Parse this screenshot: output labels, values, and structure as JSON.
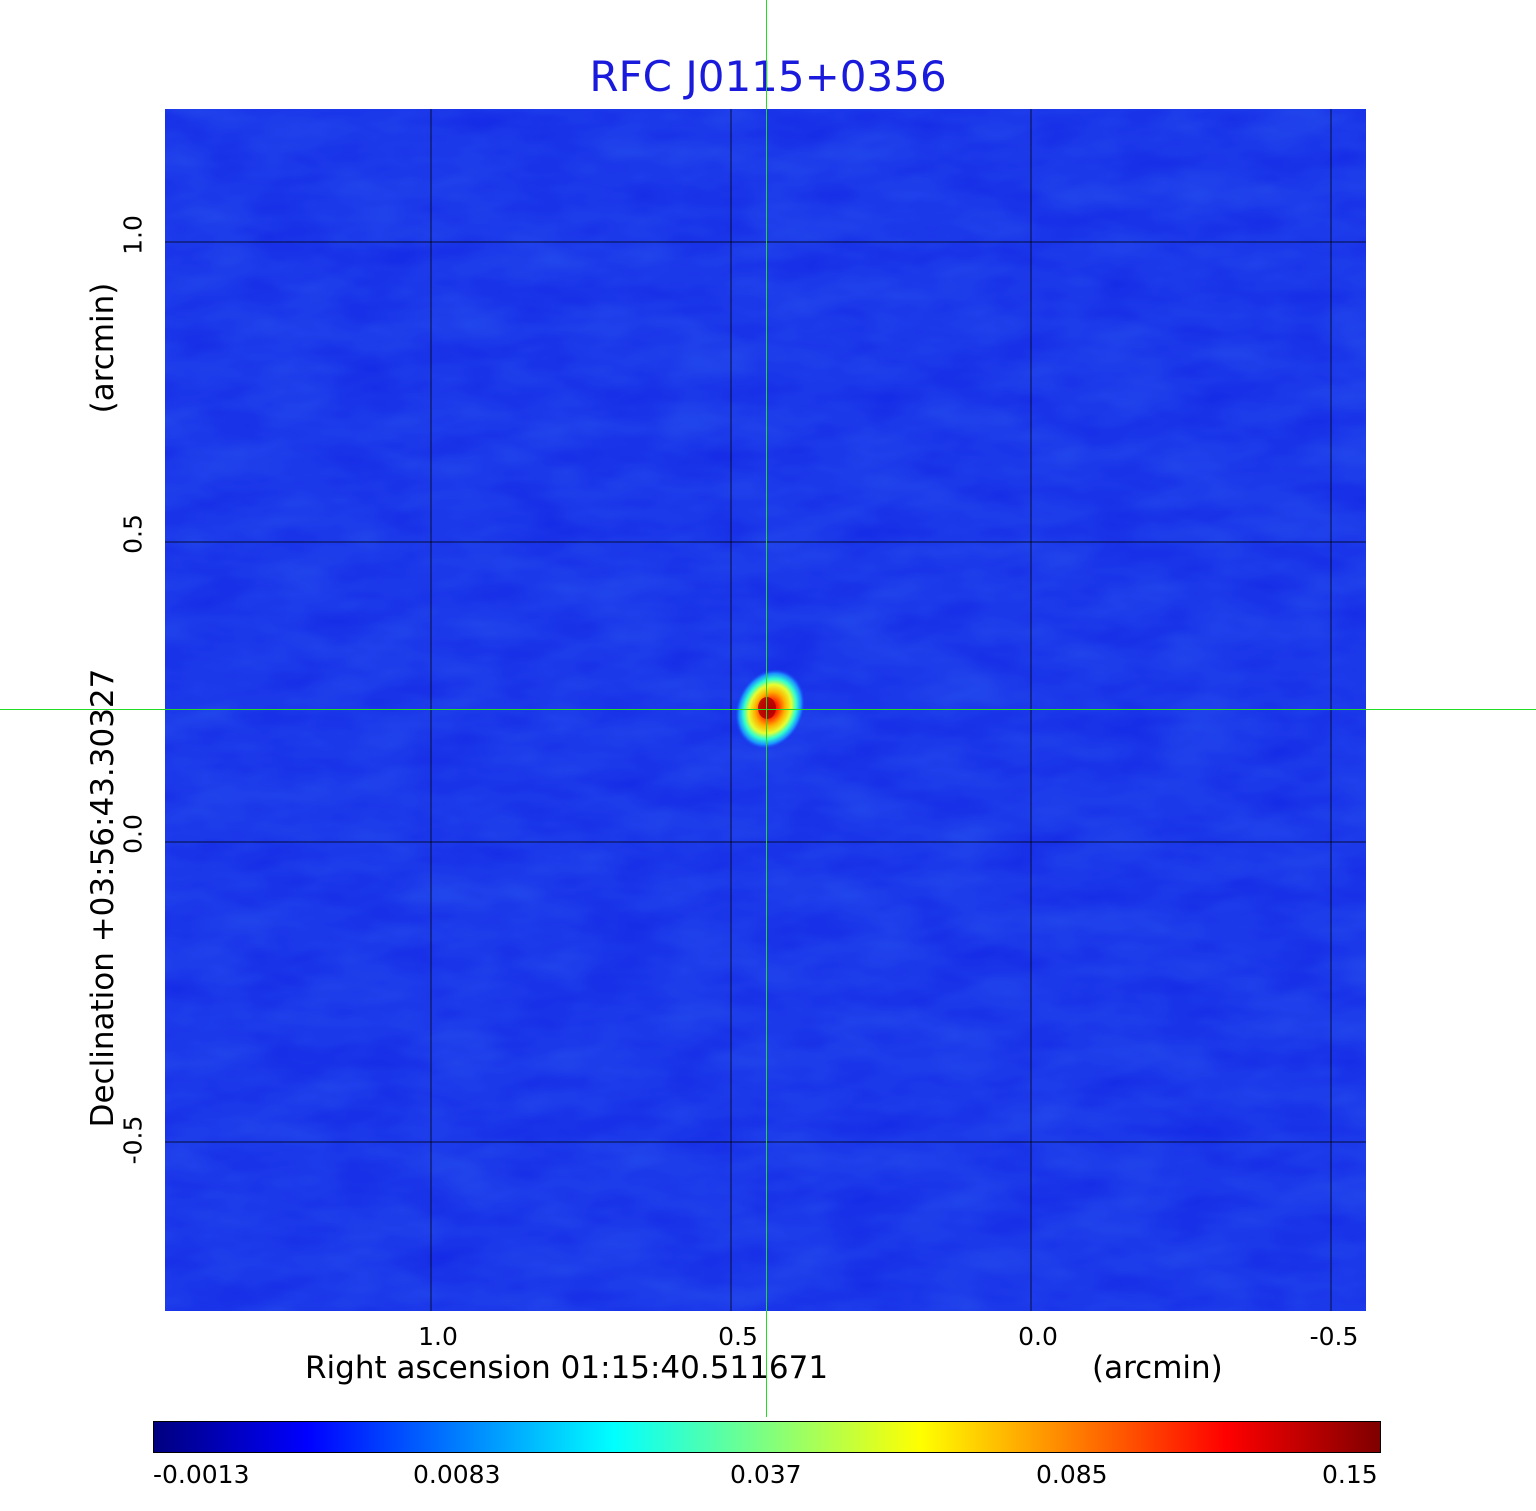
{
  "title": "RFC J0115+0356",
  "x_axis": {
    "label": "Right ascension  01:15:40.511671",
    "unit": "(arcmin)",
    "ticks": [
      "1.0",
      "0.5",
      "0.0",
      "-0.5"
    ]
  },
  "y_axis": {
    "label": "Declination  +03:56:43.30327",
    "unit": "(arcmin)",
    "ticks": [
      "1.0",
      "0.5",
      "0.0",
      "-0.5"
    ]
  },
  "colorbar": {
    "ticks": [
      "-0.0013",
      "0.0083",
      "0.037",
      "0.085",
      "0.15"
    ],
    "colormap": [
      "#00007f",
      "#0000ff",
      "#007fff",
      "#00ffff",
      "#7fff7f",
      "#ffff00",
      "#ff7f00",
      "#ff0000",
      "#7f0000"
    ]
  },
  "colors": {
    "title": "#1a1adc",
    "background_field": "#1428e6",
    "crosshair": "#22dd22",
    "grid": "#000000"
  }
}
